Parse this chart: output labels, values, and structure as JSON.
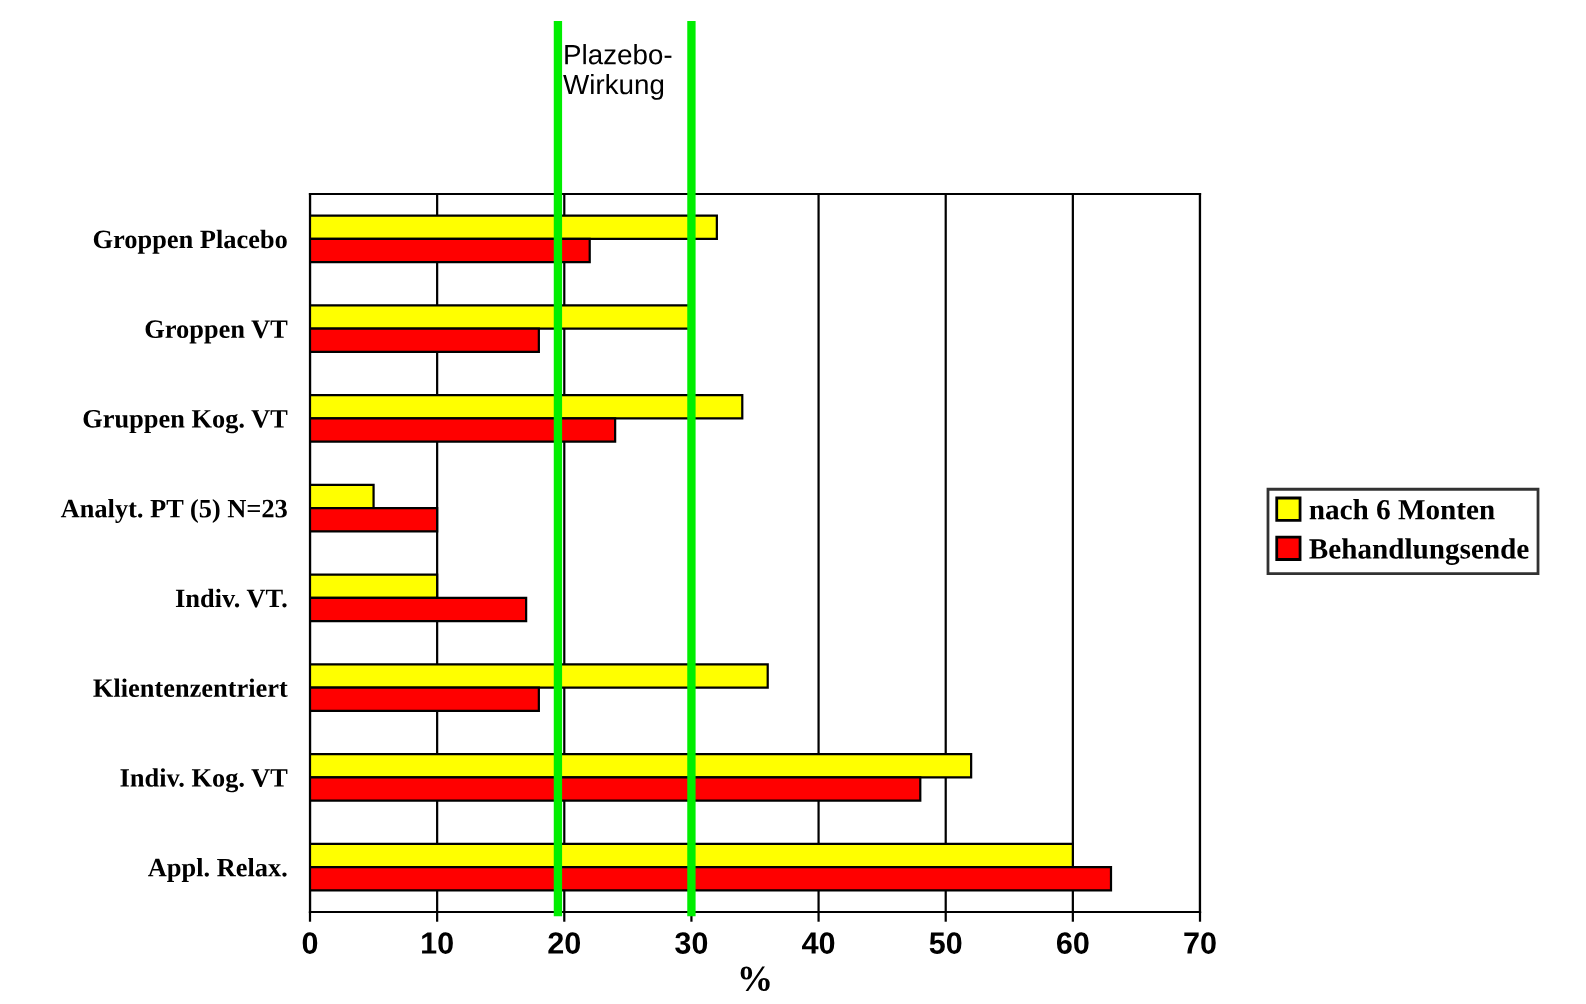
{
  "chart_data": {
    "type": "bar",
    "orientation": "horizontal",
    "xlabel": "%",
    "categories": [
      "Groppen Placebo",
      "Groppen VT",
      "Gruppen Kog. VT",
      "Analyt. PT (5) N=23",
      "Indiv. VT.",
      "Klientenzentriert",
      "Indiv. Kog. VT",
      "Appl. Relax."
    ],
    "series": [
      {
        "name": "nach 6 Monten",
        "color": "#ffff00",
        "values": [
          32,
          30,
          34,
          5,
          10,
          36,
          52,
          60
        ]
      },
      {
        "name": "Behandlungsende",
        "color": "#ff0000",
        "values": [
          22,
          18,
          24,
          10,
          17,
          18,
          48,
          63
        ]
      }
    ],
    "xlim": [
      0,
      70
    ],
    "xticks": [
      0,
      10,
      20,
      30,
      40,
      50,
      60,
      70
    ],
    "grid": "x",
    "legend": "right",
    "ref_lines": [
      {
        "axis": "x",
        "value": 19.5,
        "color": "#00ee00"
      },
      {
        "axis": "x",
        "value": 30,
        "color": "#00ee00"
      }
    ],
    "annotations": [
      "Plazebo-\nWirkung"
    ]
  }
}
